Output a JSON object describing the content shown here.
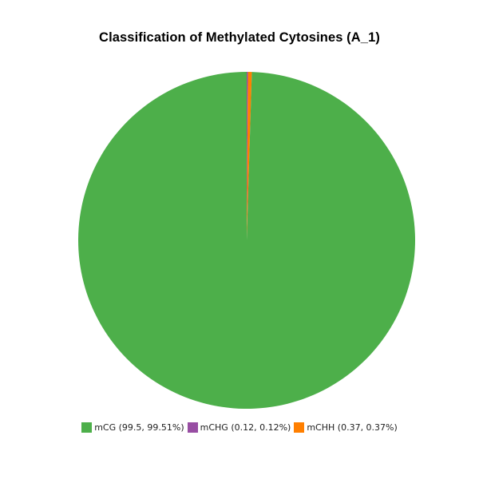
{
  "chart_data": {
    "type": "pie",
    "title": "Classification of Methylated Cytosines (A_1)",
    "series": [
      {
        "name": "mCG",
        "value": 99.5,
        "percent": 99.51,
        "label": "mCG (99.5, 99.51%)",
        "color": "#4daf4a"
      },
      {
        "name": "mCHG",
        "value": 0.12,
        "percent": 0.12,
        "label": "mCHG (0.12, 0.12%)",
        "color": "#984ea3"
      },
      {
        "name": "mCHH",
        "value": 0.37,
        "percent": 0.37,
        "label": "mCHH (0.37, 0.37%)",
        "color": "#ff7f00"
      }
    ],
    "legend_position": "bottom"
  }
}
